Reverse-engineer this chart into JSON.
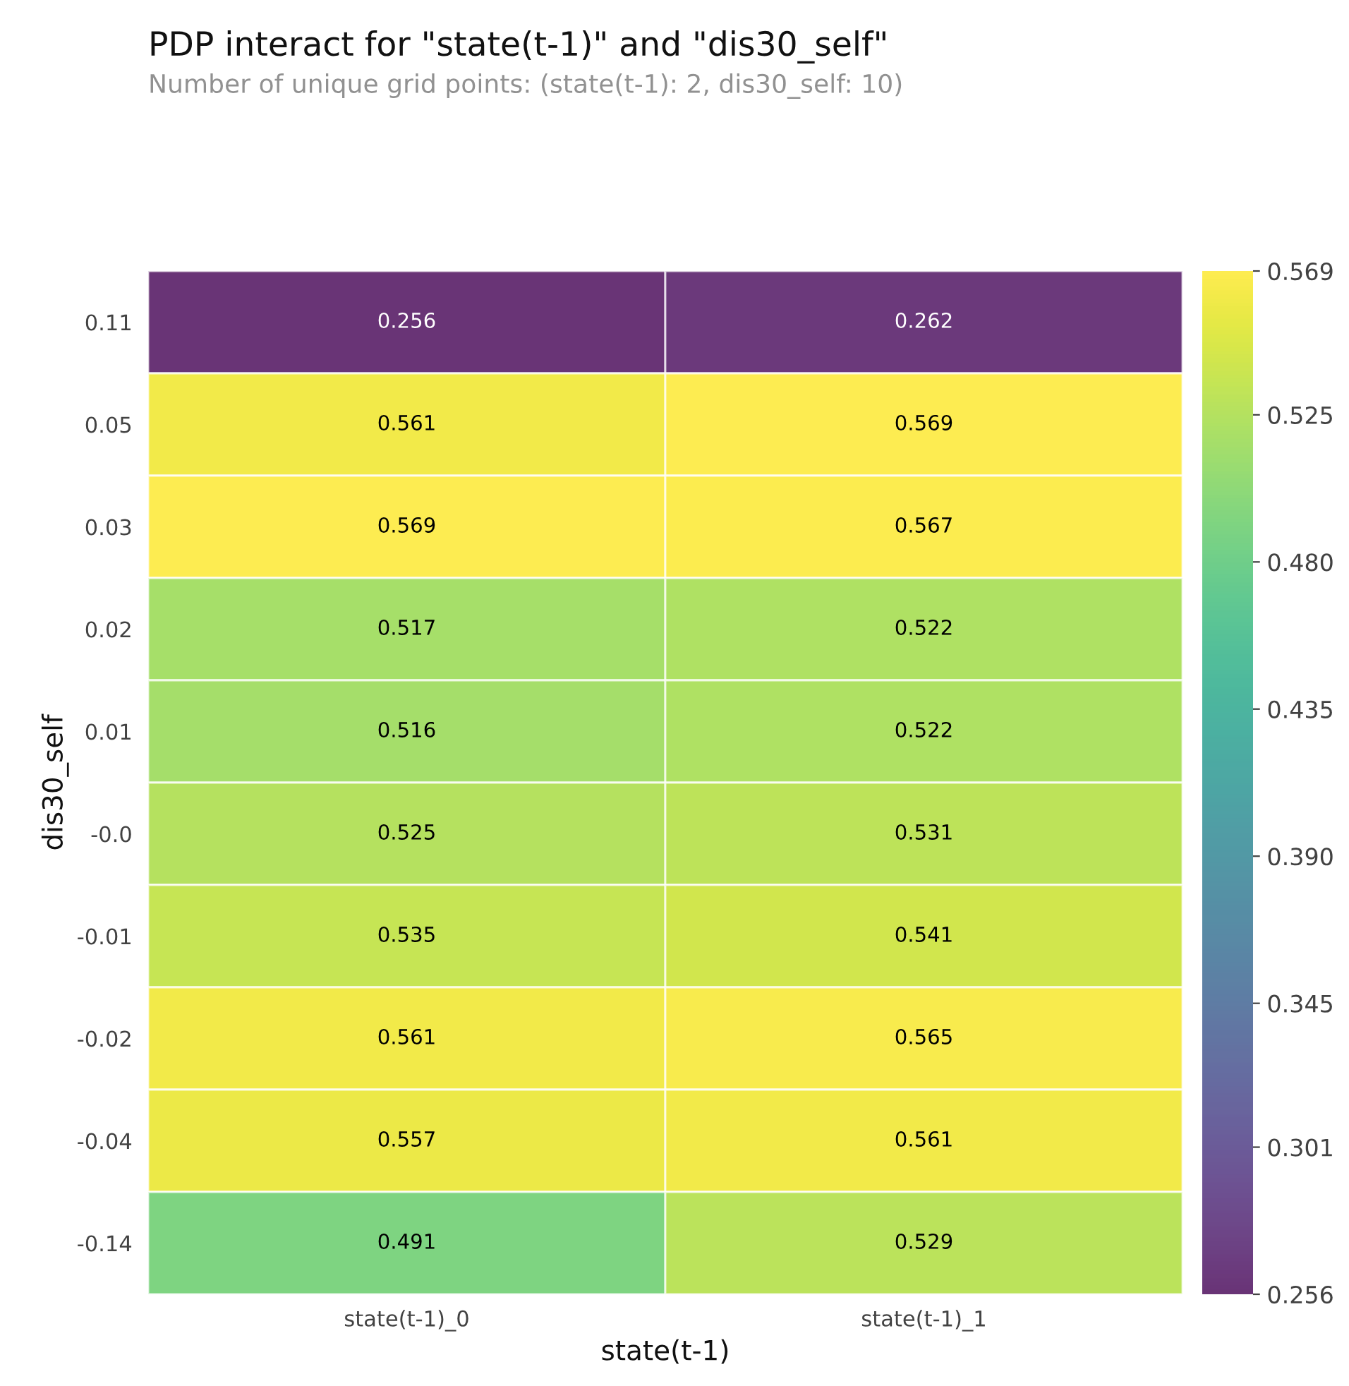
{
  "chart_data": {
    "type": "heatmap",
    "title": "PDP interact for \"state(t-1)\" and \"dis30_self\"",
    "subtitle": "Number of unique grid points: (state(t-1): 2, dis30_self: 10)",
    "xlabel": "state(t-1)",
    "ylabel": "dis30_self",
    "categories": [
      "state(t-1)_0",
      "state(t-1)_1"
    ],
    "y_categories": [
      "0.11",
      "0.05",
      "0.03",
      "0.02",
      "0.01",
      "-0.0",
      "-0.01",
      "-0.02",
      "-0.04",
      "-0.14"
    ],
    "cells": [
      [
        0.256,
        0.262
      ],
      [
        0.561,
        0.569
      ],
      [
        0.569,
        0.567
      ],
      [
        0.517,
        0.522
      ],
      [
        0.516,
        0.522
      ],
      [
        0.525,
        0.531
      ],
      [
        0.535,
        0.541
      ],
      [
        0.561,
        0.565
      ],
      [
        0.557,
        0.561
      ],
      [
        0.491,
        0.529
      ]
    ],
    "data_labels": true,
    "clim": [
      0.256,
      0.569
    ],
    "cticks": [
      0.256,
      0.301,
      0.345,
      {
        "value": 0.39,
        "label": "0.390"
      },
      0.435,
      {
        "value": 0.48,
        "label": "0.480"
      },
      0.525,
      0.569
    ]
  }
}
